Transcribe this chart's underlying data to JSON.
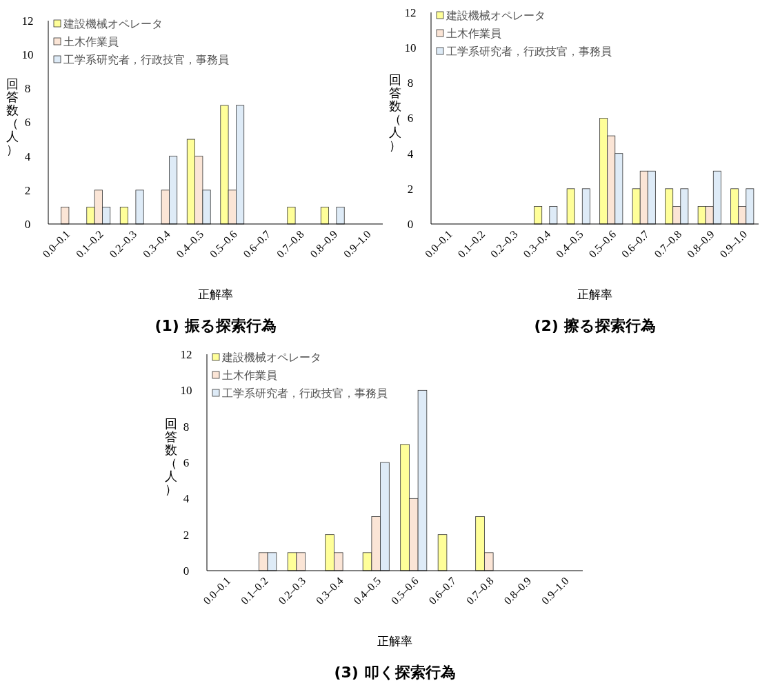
{
  "chart_data": [
    {
      "type": "bar",
      "title": "(1) 振る探索行為",
      "xlabel": "正解率",
      "ylabel": "回答数（人）",
      "legend": "top left",
      "ylim": [
        0,
        12
      ],
      "yticks": [
        0,
        2,
        4,
        6,
        8,
        10,
        12
      ],
      "categories": [
        "0.0–0.1",
        "0.1–0.2",
        "0.2–0.3",
        "0.3–0.4",
        "0.4–0.5",
        "0.5–0.6",
        "0.6–0.7",
        "0.7–0.8",
        "0.8–0.9",
        "0.9–1.0"
      ],
      "series": [
        {
          "name": "建設機械オペレータ",
          "color": "#ffff99",
          "values": [
            0,
            1,
            1,
            0,
            5,
            7,
            0,
            1,
            1,
            0
          ]
        },
        {
          "name": "土木作業員",
          "color": "#fbe5d6",
          "values": [
            1,
            2,
            0,
            2,
            4,
            2,
            0,
            0,
            0,
            0
          ]
        },
        {
          "name": "工学系研究者，行政技官，事務員",
          "color": "#deebf7",
          "values": [
            0,
            1,
            2,
            4,
            2,
            7,
            0,
            0,
            1,
            0
          ]
        }
      ]
    },
    {
      "type": "bar",
      "title": "(2) 擦る探索行為",
      "xlabel": "正解率",
      "ylabel": "回答数（人）",
      "legend": "top left",
      "ylim": [
        0,
        12
      ],
      "yticks": [
        0,
        2,
        4,
        6,
        8,
        10,
        12
      ],
      "categories": [
        "0.0–0.1",
        "0.1–0.2",
        "0.2–0.3",
        "0.3–0.4",
        "0.4–0.5",
        "0.5–0.6",
        "0.6–0.7",
        "0.7–0.8",
        "0.8–0.9",
        "0.9–1.0"
      ],
      "series": [
        {
          "name": "建設機械オペレータ",
          "color": "#ffff99",
          "values": [
            0,
            0,
            0,
            1,
            2,
            6,
            2,
            2,
            1,
            2
          ]
        },
        {
          "name": "土木作業員",
          "color": "#fbe5d6",
          "values": [
            0,
            0,
            0,
            0,
            0,
            5,
            3,
            1,
            1,
            1
          ]
        },
        {
          "name": "工学系研究者，行政技官，事務員",
          "color": "#deebf7",
          "values": [
            0,
            0,
            0,
            1,
            2,
            4,
            3,
            2,
            3,
            2
          ]
        }
      ]
    },
    {
      "type": "bar",
      "title": "(3) 叩く探索行為",
      "xlabel": "正解率",
      "ylabel": "回答数（人）",
      "legend": "top left",
      "ylim": [
        0,
        12
      ],
      "yticks": [
        0,
        2,
        4,
        6,
        8,
        10,
        12
      ],
      "categories": [
        "0.0–0.1",
        "0.1–0.2",
        "0.2–0.3",
        "0.3–0.4",
        "0.4–0.5",
        "0.5–0.6",
        "0.6–0.7",
        "0.7–0.8",
        "0.8–0.9",
        "0.9–1.0"
      ],
      "series": [
        {
          "name": "建設機械オペレータ",
          "color": "#ffff99",
          "values": [
            0,
            0,
            1,
            2,
            1,
            7,
            2,
            3,
            0,
            0
          ]
        },
        {
          "name": "土木作業員",
          "color": "#fbe5d6",
          "values": [
            0,
            1,
            1,
            1,
            3,
            4,
            0,
            1,
            0,
            0
          ]
        },
        {
          "name": "工学系研究者，行政技官，事務員",
          "color": "#deebf7",
          "values": [
            0,
            1,
            0,
            0,
            6,
            10,
            0,
            0,
            0,
            0
          ]
        }
      ]
    }
  ]
}
